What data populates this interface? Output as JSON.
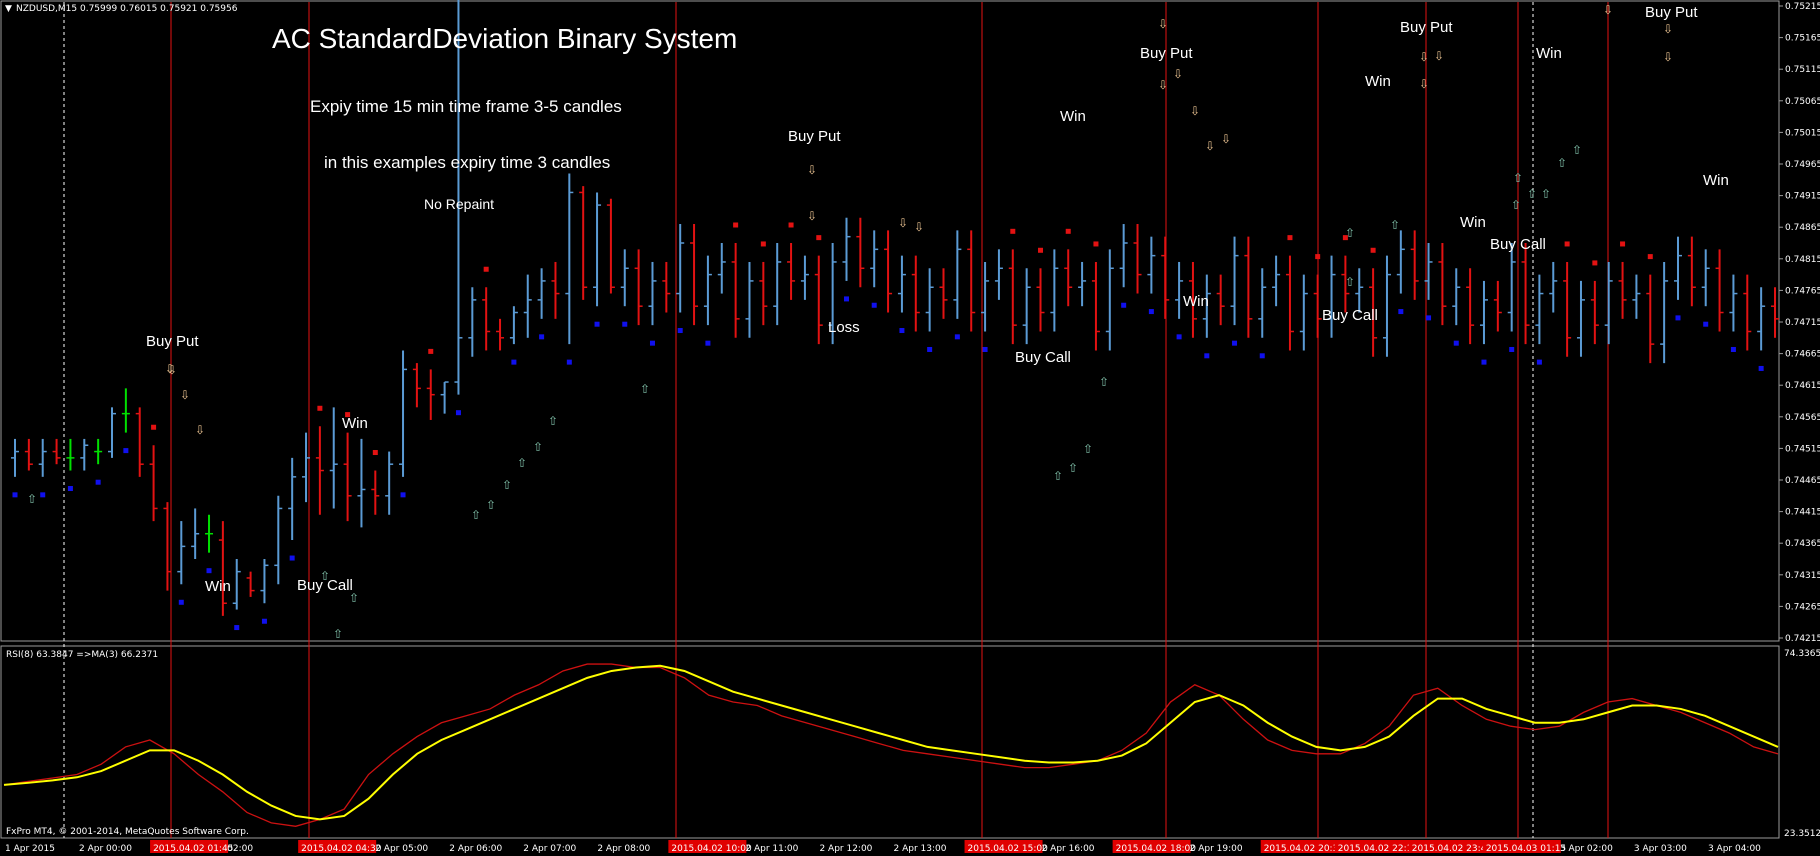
{
  "window": {
    "symbol_info": "NZDUSD,M15  0.75999 0.76015 0.75921 0.75956",
    "footer": "FxPro MT4, © 2001-2014, MetaQuotes Software Corp."
  },
  "overlay": {
    "title": "AC StandardDeviation Binary System",
    "line1": "Expiy time 15 min time frame 3-5 candles",
    "line2": "in this examples expiry time 3 candles",
    "line3": "No Repaint"
  },
  "colors": {
    "background": "#000000",
    "bull_bar": "#5b9bd5",
    "bear_bar": "#e31212",
    "neutral_bar": "#00e000",
    "dot_red": "#e31212",
    "dot_blue": "#1010ee",
    "arrow_up": "#7fbfa8",
    "arrow_down": "#e8c090",
    "signal_line": "#e31212",
    "rsi_line": "#cc1111",
    "ma_line": "#ffff00",
    "grid": "#ffffff"
  },
  "annotations": [
    {
      "label": "Buy Put",
      "kind": "signal"
    },
    {
      "label": "Win",
      "kind": "result"
    },
    {
      "label": "Buy Call",
      "kind": "signal"
    },
    {
      "label": "Win",
      "kind": "result"
    },
    {
      "label": "Buy Put",
      "kind": "signal"
    },
    {
      "label": "Loss",
      "kind": "result"
    },
    {
      "label": "Buy Call",
      "kind": "signal"
    },
    {
      "label": "Win",
      "kind": "result"
    },
    {
      "label": "Buy Put",
      "kind": "signal"
    },
    {
      "label": "Win",
      "kind": "result"
    },
    {
      "label": "Buy Call",
      "kind": "signal"
    },
    {
      "label": "Win",
      "kind": "result"
    },
    {
      "label": "Buy Put",
      "kind": "signal"
    },
    {
      "label": "Win",
      "kind": "result"
    },
    {
      "label": "Buy Call",
      "kind": "signal"
    },
    {
      "label": "Win",
      "kind": "result"
    },
    {
      "label": "Buy Put",
      "kind": "signal"
    },
    {
      "label": "Win",
      "kind": "result"
    }
  ],
  "price_axis": [
    "0.75215",
    "0.75165",
    "0.75115",
    "0.75065",
    "0.75015",
    "0.74965",
    "0.74915",
    "0.74865",
    "0.74815",
    "0.74765",
    "0.74715",
    "0.74665",
    "0.74615",
    "0.74565",
    "0.74515",
    "0.74465",
    "0.74415",
    "0.74365",
    "0.74315",
    "0.74265",
    "0.74215"
  ],
  "indicator": {
    "label": "RSI(8) 63.3847  =>MA(3) 66.2371",
    "axis_top": "74.3365",
    "axis_bottom": "23.3512"
  },
  "time_axis": [
    {
      "label": "1 Apr 2015",
      "highlight": false
    },
    {
      "label": "2 Apr 00:00",
      "highlight": false
    },
    {
      "label": "2015.04.02 01:45",
      "highlight": true
    },
    {
      "label": "02:00",
      "highlight": false
    },
    {
      "label": "2015.04.02 04:30",
      "highlight": true
    },
    {
      "label": "2 Apr 05:00",
      "highlight": false
    },
    {
      "label": "2 Apr 06:00",
      "highlight": false
    },
    {
      "label": "2 Apr 07:00",
      "highlight": false
    },
    {
      "label": "2 Apr 08:00",
      "highlight": false
    },
    {
      "label": "2015.04.02 10:00",
      "highlight": true
    },
    {
      "label": "2 Apr 11:00",
      "highlight": false
    },
    {
      "label": "2 Apr 12:00",
      "highlight": false
    },
    {
      "label": "2 Apr 13:00",
      "highlight": false
    },
    {
      "label": "2015.04.02 15:00",
      "highlight": true
    },
    {
      "label": "2 Apr 16:00",
      "highlight": false
    },
    {
      "label": "2015.04.02 18:00",
      "highlight": true
    },
    {
      "label": "2 Apr 19:00",
      "highlight": false
    },
    {
      "label": "2015.04.02 20:30",
      "highlight": true
    },
    {
      "label": "2015.04.02 22:15",
      "highlight": true
    },
    {
      "label": "2015.04.02 23:45",
      "highlight": true
    },
    {
      "label": "2015.04.03 01:15",
      "highlight": true
    },
    {
      "label": "3 Apr 02:00",
      "highlight": false
    },
    {
      "label": "3 Apr 03:00",
      "highlight": false
    },
    {
      "label": "3 Apr 04:00",
      "highlight": false
    }
  ],
  "chart_data": {
    "type": "candlestick",
    "symbol": "NZDUSD",
    "timeframe": "M15",
    "ylim": [
      0.74215,
      0.75215
    ],
    "bars": [
      {
        "o": 0.745,
        "h": 0.7453,
        "l": 0.7447,
        "c": 0.7451
      },
      {
        "o": 0.7451,
        "h": 0.7453,
        "l": 0.7448,
        "c": 0.7449
      },
      {
        "o": 0.7449,
        "h": 0.7453,
        "l": 0.7447,
        "c": 0.7451
      },
      {
        "o": 0.7451,
        "h": 0.7453,
        "l": 0.7449,
        "c": 0.745
      },
      {
        "o": 0.745,
        "h": 0.7453,
        "l": 0.7448,
        "c": 0.745
      },
      {
        "o": 0.745,
        "h": 0.7453,
        "l": 0.7448,
        "c": 0.7452
      },
      {
        "o": 0.7451,
        "h": 0.7453,
        "l": 0.7449,
        "c": 0.7451
      },
      {
        "o": 0.7451,
        "h": 0.7458,
        "l": 0.745,
        "c": 0.7457
      },
      {
        "o": 0.7457,
        "h": 0.7461,
        "l": 0.7454,
        "c": 0.7457
      },
      {
        "o": 0.7457,
        "h": 0.7458,
        "l": 0.7447,
        "c": 0.7449
      },
      {
        "o": 0.7449,
        "h": 0.7452,
        "l": 0.744,
        "c": 0.7442
      },
      {
        "o": 0.7442,
        "h": 0.7443,
        "l": 0.7429,
        "c": 0.7432
      },
      {
        "o": 0.7432,
        "h": 0.744,
        "l": 0.743,
        "c": 0.7436
      },
      {
        "o": 0.7436,
        "h": 0.7442,
        "l": 0.7434,
        "c": 0.7438
      },
      {
        "o": 0.7438,
        "h": 0.7441,
        "l": 0.7435,
        "c": 0.7438
      },
      {
        "o": 0.7437,
        "h": 0.744,
        "l": 0.7425,
        "c": 0.7427
      },
      {
        "o": 0.7427,
        "h": 0.7434,
        "l": 0.7426,
        "c": 0.7432
      },
      {
        "o": 0.7431,
        "h": 0.7432,
        "l": 0.7428,
        "c": 0.7429
      },
      {
        "o": 0.7429,
        "h": 0.7434,
        "l": 0.7427,
        "c": 0.7433
      },
      {
        "o": 0.7433,
        "h": 0.7444,
        "l": 0.743,
        "c": 0.7442
      },
      {
        "o": 0.7442,
        "h": 0.745,
        "l": 0.7437,
        "c": 0.7447
      },
      {
        "o": 0.7447,
        "h": 0.7454,
        "l": 0.7443,
        "c": 0.745
      },
      {
        "o": 0.745,
        "h": 0.7455,
        "l": 0.7441,
        "c": 0.7448
      },
      {
        "o": 0.7448,
        "h": 0.7458,
        "l": 0.7442,
        "c": 0.7449
      },
      {
        "o": 0.7449,
        "h": 0.7454,
        "l": 0.744,
        "c": 0.7444
      },
      {
        "o": 0.7444,
        "h": 0.7453,
        "l": 0.7439,
        "c": 0.7445
      },
      {
        "o": 0.7445,
        "h": 0.7448,
        "l": 0.7441,
        "c": 0.7444
      },
      {
        "o": 0.7444,
        "h": 0.7451,
        "l": 0.7441,
        "c": 0.7449
      },
      {
        "o": 0.7449,
        "h": 0.7467,
        "l": 0.7447,
        "c": 0.7464
      },
      {
        "o": 0.7464,
        "h": 0.7465,
        "l": 0.7458,
        "c": 0.7461
      },
      {
        "o": 0.7461,
        "h": 0.7464,
        "l": 0.7456,
        "c": 0.746
      },
      {
        "o": 0.746,
        "h": 0.7462,
        "l": 0.7457,
        "c": 0.7462
      },
      {
        "o": 0.7462,
        "h": 0.7674,
        "l": 0.746,
        "c": 0.7469
      },
      {
        "o": 0.7469,
        "h": 0.7477,
        "l": 0.7466,
        "c": 0.7475
      },
      {
        "o": 0.7475,
        "h": 0.7477,
        "l": 0.7467,
        "c": 0.747
      },
      {
        "o": 0.747,
        "h": 0.7472,
        "l": 0.7467,
        "c": 0.7469
      },
      {
        "o": 0.7469,
        "h": 0.7474,
        "l": 0.7468,
        "c": 0.7473
      },
      {
        "o": 0.7473,
        "h": 0.7479,
        "l": 0.7469,
        "c": 0.7475
      },
      {
        "o": 0.7475,
        "h": 0.748,
        "l": 0.7472,
        "c": 0.7478
      },
      {
        "o": 0.7478,
        "h": 0.7481,
        "l": 0.7472,
        "c": 0.7476
      },
      {
        "o": 0.7476,
        "h": 0.7495,
        "l": 0.7468,
        "c": 0.7492
      },
      {
        "o": 0.7492,
        "h": 0.7493,
        "l": 0.7475,
        "c": 0.7477
      },
      {
        "o": 0.7477,
        "h": 0.7492,
        "l": 0.7474,
        "c": 0.749
      },
      {
        "o": 0.749,
        "h": 0.7491,
        "l": 0.7476,
        "c": 0.7477
      }
    ]
  }
}
